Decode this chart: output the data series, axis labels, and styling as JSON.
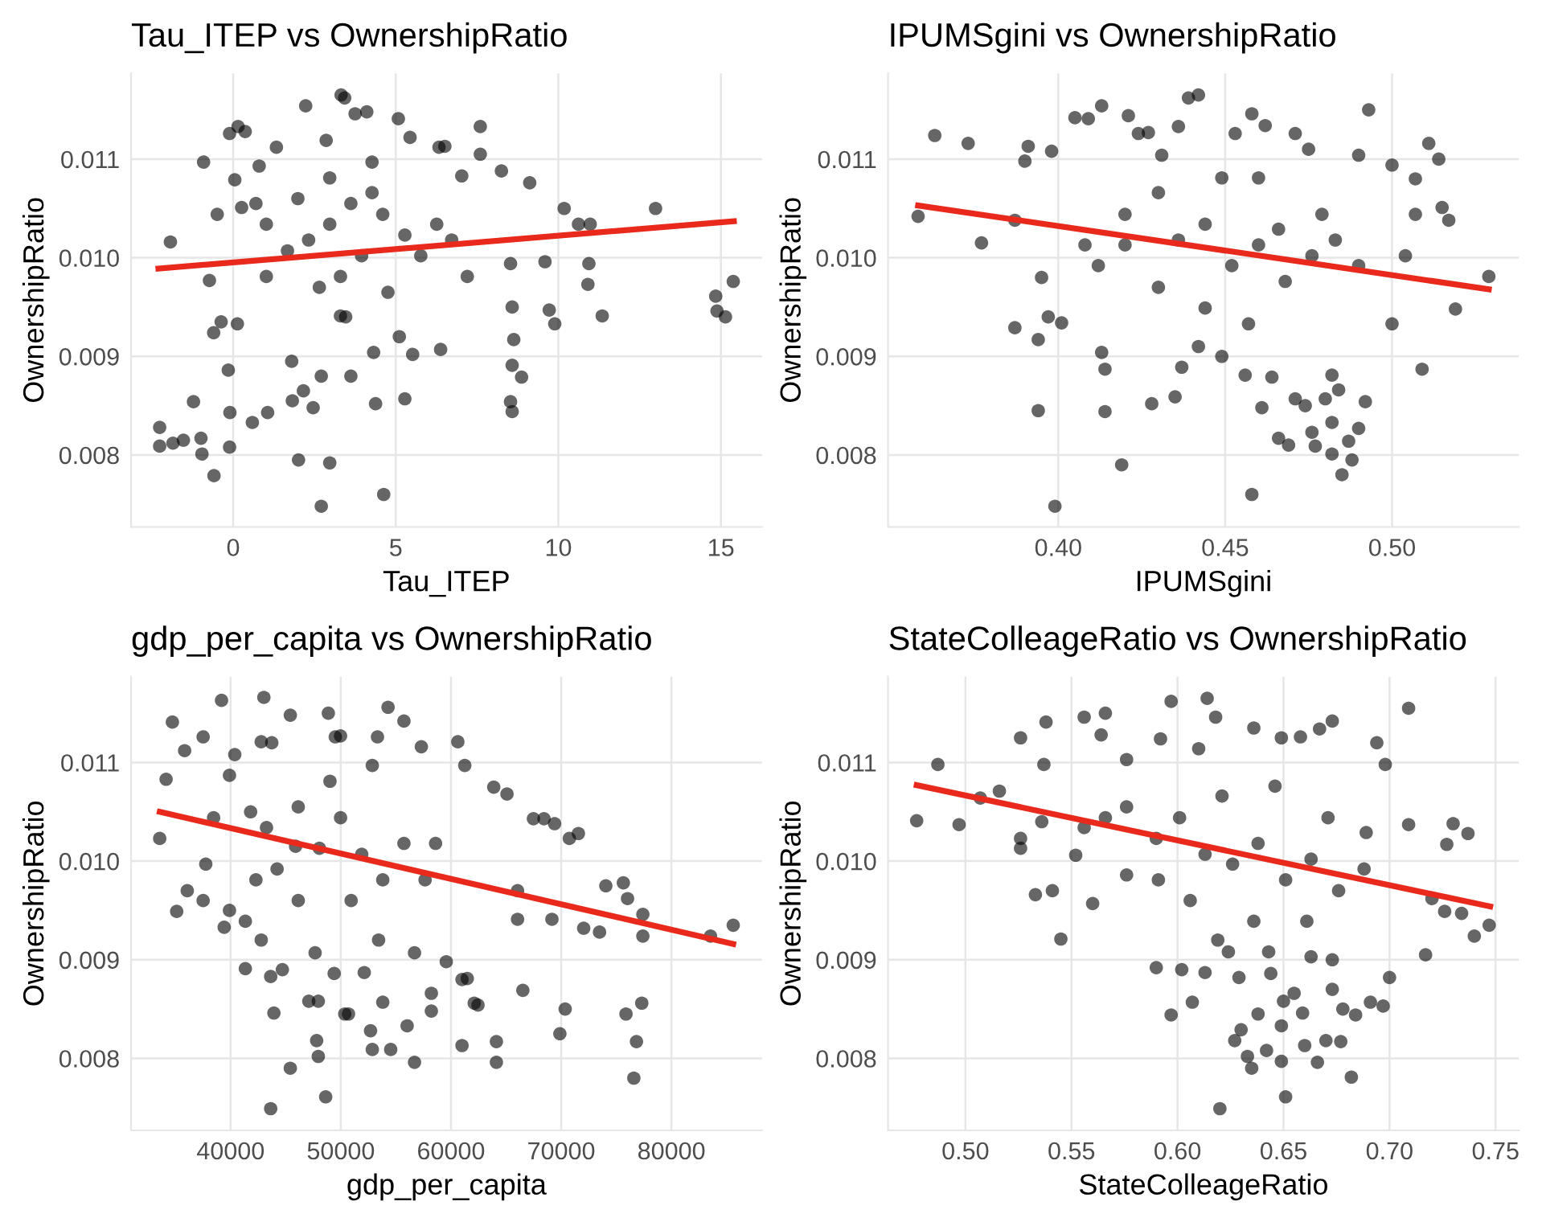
{
  "chart_data": [
    {
      "type": "scatter",
      "title": "Tau_ITEP vs OwnershipRatio",
      "xlabel": "Tau_ITEP",
      "ylabel": "OwnershipRatio",
      "grid": true,
      "xlim": [
        -3.14,
        16.26
      ],
      "xticks": [
        0,
        5,
        10,
        15
      ],
      "ylim": [
        0.00727,
        0.01187
      ],
      "yticks": [
        {
          "value": 0.008,
          "label": "0.008"
        },
        {
          "value": 0.009,
          "label": "0.009"
        },
        {
          "value": 0.01,
          "label": "0.010"
        },
        {
          "value": 0.011,
          "label": "0.011"
        }
      ],
      "series": [
        {
          "marker": "circle",
          "color": "#000000",
          "x": [
            -2.26,
            -2.26,
            -1.93,
            -1.85,
            -1.53,
            -1.22,
            -0.99,
            -0.96,
            -0.91,
            -0.73,
            -0.6,
            -0.59,
            -0.49,
            -0.37,
            -0.15,
            -0.11,
            -0.1,
            -0.11,
            0.15,
            0.37,
            0.05,
            0.26,
            0.13,
            0.59,
            0.8,
            1.02,
            1.06,
            1.33,
            1.8,
            1.82,
            2.01,
            2.23,
            2.16,
            2.46,
            2.71,
            2.71,
            2.86,
            2.97,
            3.32,
            3.43,
            3.3,
            3.46,
            3.62,
            3.75,
            4.11,
            4.32,
            4.38,
            4.63,
            5.08,
            5.11,
            5.28,
            5.44,
            5.52,
            6.38,
            6.33,
            6.51,
            7.03,
            7.6,
            7.6,
            8.25,
            8.53,
            8.58,
            8.63,
            8.58,
            8.53,
            8.58,
            8.87,
            9.12,
            9.59,
            9.72,
            9.89,
            10.18,
            10.62,
            10.98,
            10.94,
            10.91,
            11.35,
            12.99,
            14.84,
            14.88,
            15.14,
            15.38,
            2.32,
            2.97,
            3.62,
            4.27,
            4.6,
            3.95,
            3.3,
            5.28,
            5.77,
            6.26,
            6.72,
            7.2,
            4.76,
            2.65,
            1.67,
            1.02,
            2.97,
            4.27,
            1.99,
            0.7
          ],
          "values": [
            0.00809,
            0.00828,
            0.01016,
            0.00812,
            0.00815,
            0.00854,
            0.00817,
            0.00801,
            0.01097,
            0.00977,
            0.00924,
            0.00779,
            0.01044,
            0.00935,
            0.00886,
            0.01126,
            0.00843,
            0.00808,
            0.01133,
            0.01128,
            0.01079,
            0.01051,
            0.00933,
            0.00833,
            0.01093,
            0.01034,
            0.00843,
            0.01112,
            0.00895,
            0.00855,
            0.00795,
            0.01154,
            0.00865,
            0.00848,
            0.0088,
            0.00748,
            0.01119,
            0.00792,
            0.01165,
            0.01162,
            0.00941,
            0.0094,
            0.0088,
            0.01146,
            0.01148,
            0.00904,
            0.00852,
            0.0076,
            0.01141,
            0.0092,
            0.00857,
            0.01122,
            0.00902,
            0.00907,
            0.01112,
            0.01113,
            0.01083,
            0.01133,
            0.01105,
            0.01088,
            0.00994,
            0.0095,
            0.00917,
            0.00891,
            0.00854,
            0.00844,
            0.00879,
            0.01076,
            0.00996,
            0.00947,
            0.00933,
            0.0105,
            0.01034,
            0.01034,
            0.00994,
            0.00973,
            0.00941,
            0.0105,
            0.00961,
            0.00946,
            0.0094,
            0.00976,
            0.01018,
            0.01034,
            0.01055,
            0.01066,
            0.01044,
            0.01002,
            0.00981,
            0.01023,
            0.01002,
            0.01034,
            0.01018,
            0.00981,
            0.00965,
            0.0097,
            0.01007,
            0.00981,
            0.01081,
            0.01097,
            0.0106,
            0.01055
          ]
        },
        {
          "type": "line",
          "color": "#e8291c",
          "x": [
            -2.3,
            15.4
          ],
          "values": [
            0.00989,
            0.01037
          ]
        }
      ]
    },
    {
      "type": "scatter",
      "title": "IPUMSgini vs OwnershipRatio",
      "xlabel": "IPUMSgini",
      "ylabel": "OwnershipRatio",
      "grid": true,
      "xlim": [
        0.349,
        0.538
      ],
      "xticks": [
        {
          "value": 0.4,
          "label": "0.40"
        },
        {
          "value": 0.45,
          "label": "0.45"
        },
        {
          "value": 0.5,
          "label": "0.50"
        }
      ],
      "ylim": [
        0.00727,
        0.01187
      ],
      "yticks": [
        {
          "value": 0.008,
          "label": "0.008"
        },
        {
          "value": 0.009,
          "label": "0.009"
        },
        {
          "value": 0.01,
          "label": "0.010"
        },
        {
          "value": 0.011,
          "label": "0.011"
        }
      ],
      "series": [
        {
          "marker": "circle",
          "color": "#000000",
          "x": [
            0.358,
            0.363,
            0.373,
            0.377,
            0.387,
            0.387,
            0.391,
            0.39,
            0.394,
            0.394,
            0.395,
            0.398,
            0.397,
            0.399,
            0.401,
            0.405,
            0.409,
            0.413,
            0.413,
            0.414,
            0.414,
            0.419,
            0.421,
            0.424,
            0.427,
            0.428,
            0.431,
            0.435,
            0.436,
            0.437,
            0.439,
            0.442,
            0.442,
            0.449,
            0.453,
            0.456,
            0.458,
            0.458,
            0.461,
            0.462,
            0.464,
            0.466,
            0.469,
            0.471,
            0.471,
            0.474,
            0.475,
            0.476,
            0.477,
            0.48,
            0.482,
            0.482,
            0.482,
            0.484,
            0.485,
            0.487,
            0.488,
            0.49,
            0.49,
            0.492,
            0.493,
            0.5,
            0.5,
            0.507,
            0.509,
            0.511,
            0.514,
            0.515,
            0.517,
            0.519,
            0.529,
            0.507,
            0.504,
            0.42,
            0.43,
            0.436,
            0.444,
            0.452,
            0.46,
            0.466,
            0.468,
            0.476,
            0.483,
            0.49,
            0.43,
            0.444,
            0.457,
            0.42,
            0.412,
            0.408,
            0.449,
            0.46,
            0.479
          ],
          "values": [
            0.01042,
            0.01124,
            0.01116,
            0.01015,
            0.01038,
            0.00929,
            0.01113,
            0.01098,
            0.00917,
            0.00845,
            0.0098,
            0.01108,
            0.0094,
            0.00748,
            0.00934,
            0.01142,
            0.01141,
            0.01154,
            0.00904,
            0.00887,
            0.00844,
            0.0079,
            0.01144,
            0.01126,
            0.01127,
            0.00852,
            0.01104,
            0.00859,
            0.01133,
            0.00889,
            0.01162,
            0.01165,
            0.0091,
            0.009,
            0.01126,
            0.00881,
            0.01146,
            0.0076,
            0.00848,
            0.01134,
            0.00879,
            0.00817,
            0.0081,
            0.00857,
            0.01126,
            0.0085,
            0.0111,
            0.00823,
            0.00809,
            0.00857,
            0.00881,
            0.00833,
            0.00801,
            0.00866,
            0.0078,
            0.00814,
            0.00795,
            0.00827,
            0.01104,
            0.00854,
            0.0115,
            0.01094,
            0.00933,
            0.0108,
            0.00887,
            0.01116,
            0.011,
            0.01051,
            0.01038,
            0.00948,
            0.00981,
            0.01044,
            0.01002,
            0.01044,
            0.01066,
            0.01018,
            0.01034,
            0.00992,
            0.01013,
            0.01029,
            0.00976,
            0.01002,
            0.01018,
            0.00992,
            0.0097,
            0.00949,
            0.00933,
            0.01013,
            0.00992,
            0.01013,
            0.01081,
            0.01081,
            0.01044
          ]
        },
        {
          "type": "line",
          "color": "#e8291c",
          "x": [
            0.358,
            0.529
          ],
          "values": [
            0.01053,
            0.00968
          ]
        }
      ]
    },
    {
      "type": "scatter",
      "title": "gdp_per_capita vs OwnershipRatio",
      "xlabel": "gdp_per_capita",
      "ylabel": "OwnershipRatio",
      "grid": true,
      "xlim": [
        30970,
        88210
      ],
      "xticks": [
        40000,
        50000,
        60000,
        70000,
        80000
      ],
      "ylim": [
        0.00727,
        0.01187
      ],
      "yticks": [
        {
          "value": 0.008,
          "label": "0.008"
        },
        {
          "value": 0.009,
          "label": "0.009"
        },
        {
          "value": 0.01,
          "label": "0.010"
        },
        {
          "value": 0.011,
          "label": "0.011"
        }
      ],
      "series": [
        {
          "marker": "circle",
          "color": "#000000",
          "x": [
            33570,
            34150,
            34720,
            35110,
            35830,
            36070,
            37510,
            37750,
            39180,
            39420,
            39900,
            41340,
            41340,
            42780,
            43020,
            42780,
            43640,
            43740,
            43930,
            43640,
            44700,
            45420,
            45420,
            45900,
            47100,
            47960,
            47810,
            47960,
            47670,
            48630,
            48870,
            49400,
            49500,
            49980,
            50360,
            50700,
            52130,
            52700,
            52860,
            53330,
            53430,
            53810,
            54290,
            54530,
            55730,
            56020,
            56690,
            56690,
            57310,
            58220,
            58220,
            59570,
            60620,
            61000,
            61480,
            61000,
            61250,
            62110,
            62450,
            63880,
            64120,
            64120,
            65080,
            66040,
            66520,
            66040,
            67480,
            68440,
            69400,
            69160,
            69880,
            70360,
            70740,
            71560,
            72040,
            73480,
            74050,
            75640,
            76020,
            75880,
            76590,
            76830,
            77310,
            77410,
            77410,
            83550,
            85610,
            38460,
            39900,
            41820,
            43260,
            44220,
            46140,
            48060,
            49980,
            51900,
            53810,
            55730,
            57650,
            40380,
            37510,
            42300,
            49020,
            52860,
            46140,
            50940,
            58600
          ],
          "values": [
            0.01023,
            0.01083,
            0.01141,
            0.00949,
            0.01112,
            0.0097,
            0.01126,
            0.00997,
            0.01163,
            0.00933,
            0.0095,
            0.00891,
            0.00939,
            0.01121,
            0.01166,
            0.0092,
            0.00883,
            0.0112,
            0.00846,
            0.00749,
            0.0089,
            0.0079,
            0.01148,
            0.01015,
            0.00858,
            0.00802,
            0.00818,
            0.00858,
            0.00907,
            0.00761,
            0.0115,
            0.00886,
            0.01126,
            0.01127,
            0.00845,
            0.00845,
            0.00887,
            0.00828,
            0.00809,
            0.01126,
            0.0092,
            0.00857,
            0.01156,
            0.00809,
            0.01142,
            0.00833,
            0.00796,
            0.00907,
            0.01116,
            0.00866,
            0.00848,
            0.00898,
            0.01121,
            0.0088,
            0.00881,
            0.00813,
            0.01097,
            0.00856,
            0.00854,
            0.01075,
            0.00817,
            0.00796,
            0.01068,
            0.0097,
            0.00869,
            0.00941,
            0.01043,
            0.01043,
            0.01038,
            0.00941,
            0.00825,
            0.0085,
            0.01023,
            0.01028,
            0.00932,
            0.00928,
            0.00975,
            0.00978,
            0.00962,
            0.00845,
            0.0078,
            0.00817,
            0.00856,
            0.00946,
            0.00924,
            0.00924,
            0.00935,
            0.01044,
            0.01087,
            0.0105,
            0.01034,
            0.00992,
            0.01055,
            0.01013,
            0.01044,
            0.01007,
            0.00981,
            0.01018,
            0.00981,
            0.01108,
            0.0096,
            0.00981,
            0.01081,
            0.01097,
            0.0096,
            0.0096,
            0.01018
          ]
        },
        {
          "type": "line",
          "color": "#e8291c",
          "x": [
            33570,
            85610
          ],
          "values": [
            0.0105,
            0.00916
          ]
        }
      ]
    },
    {
      "type": "scatter",
      "title": "StateColleageRatio vs OwnershipRatio",
      "xlabel": "StateColleageRatio",
      "ylabel": "OwnershipRatio",
      "grid": true,
      "xlim": [
        0.4635,
        0.761
      ],
      "xticks": [
        {
          "value": 0.5,
          "label": "0.50"
        },
        {
          "value": 0.55,
          "label": "0.55"
        },
        {
          "value": 0.6,
          "label": "0.60"
        },
        {
          "value": 0.65,
          "label": "0.65"
        },
        {
          "value": 0.7,
          "label": "0.70"
        },
        {
          "value": 0.75,
          "label": "0.75"
        }
      ],
      "ylim": [
        0.00727,
        0.01187
      ],
      "yticks": [
        {
          "value": 0.008,
          "label": "0.008"
        },
        {
          "value": 0.009,
          "label": "0.009"
        },
        {
          "value": 0.01,
          "label": "0.010"
        },
        {
          "value": 0.011,
          "label": "0.011"
        }
      ],
      "series": [
        {
          "marker": "circle",
          "color": "#000000",
          "x": [
            0.477,
            0.487,
            0.497,
            0.507,
            0.516,
            0.526,
            0.526,
            0.526,
            0.533,
            0.538,
            0.537,
            0.536,
            0.541,
            0.545,
            0.552,
            0.556,
            0.56,
            0.566,
            0.564,
            0.576,
            0.59,
            0.592,
            0.597,
            0.597,
            0.602,
            0.607,
            0.61,
            0.613,
            0.614,
            0.618,
            0.619,
            0.624,
            0.62,
            0.627,
            0.629,
            0.63,
            0.633,
            0.635,
            0.636,
            0.638,
            0.642,
            0.643,
            0.644,
            0.649,
            0.651,
            0.649,
            0.649,
            0.65,
            0.655,
            0.658,
            0.659,
            0.66,
            0.663,
            0.667,
            0.666,
            0.67,
            0.673,
            0.673,
            0.673,
            0.677,
            0.678,
            0.682,
            0.684,
            0.689,
            0.691,
            0.694,
            0.697,
            0.698,
            0.7,
            0.709,
            0.709,
            0.717,
            0.72,
            0.726,
            0.727,
            0.73,
            0.737,
            0.734,
            0.74,
            0.747,
            0.556,
            0.576,
            0.59,
            0.601,
            0.613,
            0.626,
            0.638,
            0.651,
            0.663,
            0.676,
            0.688,
            0.621,
            0.646,
            0.606,
            0.636,
            0.661,
            0.591,
            0.671,
            0.576,
            0.566
          ],
          "values": [
            0.01041,
            0.01098,
            0.01037,
            0.01064,
            0.01071,
            0.01023,
            0.01013,
            0.01125,
            0.00966,
            0.01141,
            0.01098,
            0.0104,
            0.0097,
            0.00921,
            0.01006,
            0.01146,
            0.00957,
            0.0115,
            0.01128,
            0.01103,
            0.00892,
            0.01124,
            0.00844,
            0.01162,
            0.0089,
            0.00857,
            0.01114,
            0.00887,
            0.01165,
            0.01146,
            0.0092,
            0.00908,
            0.00749,
            0.00818,
            0.00882,
            0.00829,
            0.00802,
            0.0079,
            0.01135,
            0.00845,
            0.00808,
            0.00908,
            0.00886,
            0.00797,
            0.00761,
            0.01125,
            0.00833,
            0.00858,
            0.00866,
            0.01126,
            0.00846,
            0.00813,
            0.00903,
            0.01134,
            0.00796,
            0.00818,
            0.01142,
            0.009,
            0.0087,
            0.00817,
            0.0085,
            0.00781,
            0.00844,
            0.01029,
            0.00857,
            0.0112,
            0.00853,
            0.01098,
            0.00882,
            0.01155,
            0.01037,
            0.00905,
            0.00962,
            0.00949,
            0.01017,
            0.01038,
            0.01028,
            0.00947,
            0.00924,
            0.00935,
            0.01034,
            0.01055,
            0.01023,
            0.01044,
            0.01007,
            0.00997,
            0.01018,
            0.00981,
            0.01002,
            0.0097,
            0.00992,
            0.01066,
            0.01076,
            0.0096,
            0.00939,
            0.00939,
            0.00981,
            0.01044,
            0.00986,
            0.01044
          ]
        },
        {
          "type": "line",
          "color": "#e8291c",
          "x": [
            0.477,
            0.7475
          ],
          "values": [
            0.01077,
            0.00954
          ]
        }
      ]
    }
  ]
}
